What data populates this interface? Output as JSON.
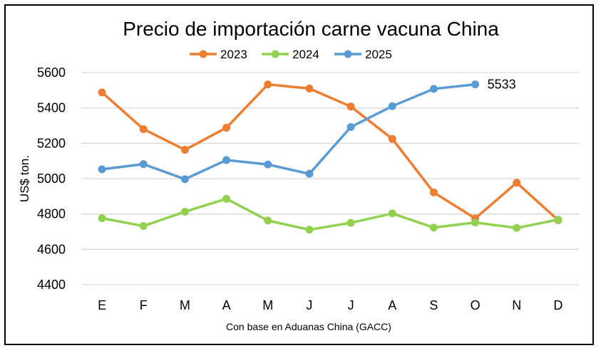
{
  "chart_data": {
    "type": "line",
    "title": "Precio de importación carne vacuna China",
    "ylabel": "US$ ton.",
    "xlabel": "",
    "source_note": "Con base en Aduanas China (GACC)",
    "categories": [
      "E",
      "F",
      "M",
      "A",
      "M",
      "J",
      "J",
      "A",
      "S",
      "O",
      "N",
      "D"
    ],
    "ylim": [
      4400,
      5600
    ],
    "yticks": [
      4400,
      4600,
      4800,
      5000,
      5200,
      5400,
      5600
    ],
    "grid": true,
    "legend_position": "top-center",
    "series": [
      {
        "name": "2023",
        "color": "#ED7D31",
        "values": [
          5488,
          5280,
          5163,
          5288,
          5533,
          5510,
          5408,
          5225,
          4922,
          4775,
          4977,
          4765
        ]
      },
      {
        "name": "2024",
        "color": "#92D050",
        "values": [
          4776,
          4732,
          4813,
          4886,
          4763,
          4711,
          4750,
          4803,
          4723,
          4752,
          4721,
          4768
        ]
      },
      {
        "name": "2025",
        "color": "#5B9BD5",
        "values": [
          5053,
          5082,
          4997,
          5105,
          5080,
          5027,
          5292,
          5410,
          5508,
          5533,
          null,
          null
        ]
      }
    ],
    "annotations": [
      {
        "series": "2025",
        "index": 9,
        "text": "5533"
      }
    ]
  }
}
